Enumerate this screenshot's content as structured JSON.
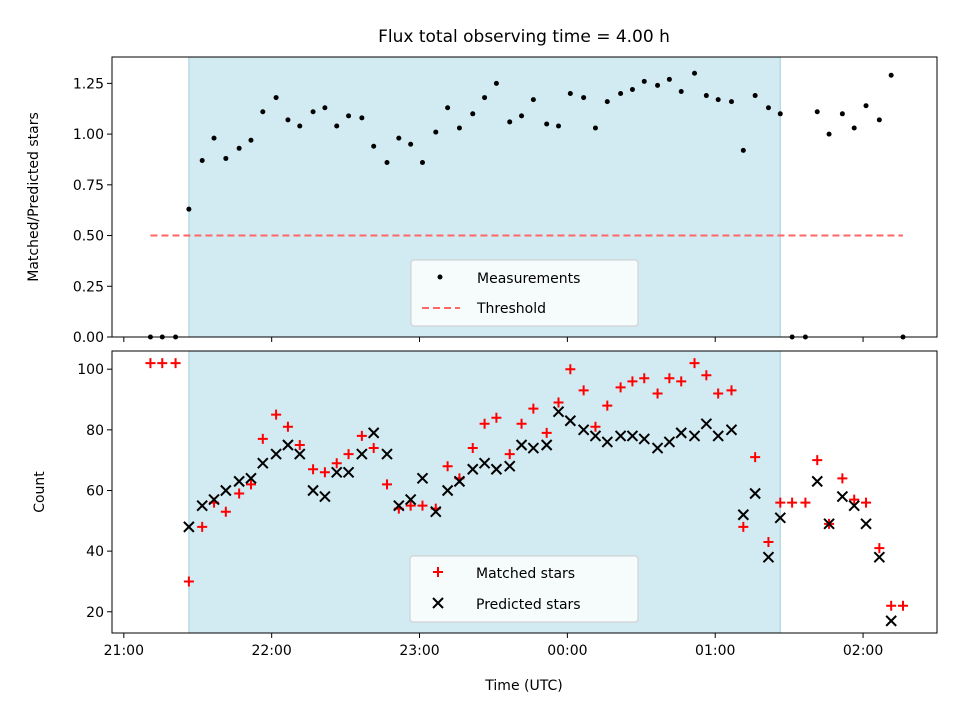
{
  "figure": {
    "title": "Flux total observing time = 4.00 h",
    "xlabel": "Time (UTC)",
    "xticks": [
      "21:00",
      "22:00",
      "23:00",
      "00:00",
      "01:00",
      "02:00"
    ],
    "shade_color": "#add8e6",
    "shade_range_hours": [
      21.44,
      25.44
    ]
  },
  "chart_data": [
    {
      "type": "scatter",
      "ylabel": "Matched/Predicted stars",
      "ylim": [
        0,
        1.38
      ],
      "yticks": [
        "0.00",
        "0.25",
        "0.50",
        "0.75",
        "1.00",
        "1.25"
      ],
      "ytick_values": [
        0,
        0.25,
        0.5,
        0.75,
        1.0,
        1.25
      ],
      "legend_position": "bottom-center",
      "threshold": {
        "name": "Threshold",
        "value": 0.5,
        "x_range": [
          21.18,
          26.27
        ],
        "color": "#ff6666"
      },
      "series": [
        {
          "name": "Measurements",
          "color": "#000000",
          "x": [
            21.18,
            21.26,
            21.35,
            21.44,
            21.53,
            21.61,
            21.69,
            21.78,
            21.86,
            21.94,
            22.03,
            22.11,
            22.19,
            22.28,
            22.36,
            22.44,
            22.52,
            22.61,
            22.69,
            22.78,
            22.86,
            22.94,
            23.02,
            23.11,
            23.19,
            23.27,
            23.36,
            23.44,
            23.52,
            23.61,
            23.69,
            23.77,
            23.86,
            23.94,
            24.02,
            24.11,
            24.19,
            24.27,
            24.36,
            24.44,
            24.52,
            24.61,
            24.69,
            24.77,
            24.86,
            24.94,
            25.02,
            25.11,
            25.19,
            25.27,
            25.36,
            25.44,
            25.52,
            25.61,
            25.69,
            25.77,
            25.86,
            25.94,
            26.02,
            26.11,
            26.19,
            26.27
          ],
          "y": [
            0,
            0,
            0,
            0.63,
            0.87,
            0.98,
            0.88,
            0.93,
            0.97,
            1.11,
            1.18,
            1.07,
            1.04,
            1.11,
            1.13,
            1.04,
            1.09,
            1.08,
            0.94,
            0.86,
            0.98,
            0.95,
            0.86,
            1.01,
            1.13,
            1.03,
            1.1,
            1.18,
            1.25,
            1.06,
            1.09,
            1.17,
            1.05,
            1.04,
            1.2,
            1.18,
            1.03,
            1.16,
            1.2,
            1.22,
            1.26,
            1.24,
            1.27,
            1.21,
            1.3,
            1.19,
            1.17,
            1.16,
            0.92,
            1.19,
            1.13,
            1.1,
            0,
            0,
            1.11,
            1.0,
            1.1,
            1.03,
            1.14,
            1.07,
            1.29,
            0
          ]
        }
      ]
    },
    {
      "type": "scatter",
      "ylabel": "Count",
      "ylim": [
        13,
        106
      ],
      "yticks": [
        "20",
        "40",
        "60",
        "80",
        "100"
      ],
      "ytick_values": [
        20,
        40,
        60,
        80,
        100
      ],
      "legend_position": "bottom-center",
      "series": [
        {
          "name": "Matched stars",
          "marker": "plus",
          "color": "#ff0000",
          "x": [
            21.18,
            21.26,
            21.35,
            21.44,
            21.53,
            21.61,
            21.69,
            21.78,
            21.86,
            21.94,
            22.03,
            22.11,
            22.19,
            22.28,
            22.36,
            22.44,
            22.52,
            22.61,
            22.69,
            22.78,
            22.86,
            22.94,
            23.02,
            23.11,
            23.19,
            23.27,
            23.36,
            23.44,
            23.52,
            23.61,
            23.69,
            23.77,
            23.86,
            23.94,
            24.02,
            24.11,
            24.19,
            24.27,
            24.36,
            24.44,
            24.52,
            24.61,
            24.69,
            24.77,
            24.86,
            24.94,
            25.02,
            25.11,
            25.19,
            25.27,
            25.36,
            25.44,
            25.52,
            25.61,
            25.69,
            25.77,
            25.86,
            25.94,
            26.02,
            26.11,
            26.19,
            26.27
          ],
          "y": [
            102,
            102,
            102,
            30,
            48,
            56,
            53,
            59,
            62,
            77,
            85,
            81,
            75,
            67,
            66,
            69,
            72,
            78,
            74,
            62,
            54,
            55,
            55,
            54,
            68,
            64,
            74,
            82,
            84,
            72,
            82,
            87,
            79,
            89,
            100,
            93,
            81,
            88,
            94,
            96,
            97,
            92,
            97,
            96,
            102,
            98,
            92,
            93,
            48,
            71,
            43,
            56,
            56,
            56,
            70,
            49,
            64,
            57,
            56,
            41,
            22,
            22
          ]
        },
        {
          "name": "Predicted stars",
          "marker": "x",
          "color": "#000000",
          "x": [
            21.44,
            21.53,
            21.61,
            21.69,
            21.78,
            21.86,
            21.94,
            22.03,
            22.11,
            22.19,
            22.28,
            22.36,
            22.44,
            22.52,
            22.61,
            22.69,
            22.78,
            22.86,
            22.94,
            23.02,
            23.11,
            23.19,
            23.27,
            23.36,
            23.44,
            23.52,
            23.61,
            23.69,
            23.77,
            23.86,
            23.94,
            24.02,
            24.11,
            24.19,
            24.27,
            24.36,
            24.44,
            24.52,
            24.61,
            24.69,
            24.77,
            24.86,
            24.94,
            25.02,
            25.11,
            25.19,
            25.27,
            25.36,
            25.44,
            25.69,
            25.77,
            25.86,
            25.94,
            26.02,
            26.11,
            26.19
          ],
          "y": [
            48,
            55,
            57,
            60,
            63,
            64,
            69,
            72,
            75,
            72,
            60,
            58,
            66,
            66,
            72,
            79,
            72,
            55,
            57,
            64,
            53,
            60,
            63,
            67,
            69,
            67,
            68,
            75,
            74,
            75,
            86,
            83,
            80,
            78,
            76,
            78,
            78,
            77,
            74,
            76,
            79,
            78,
            82,
            78,
            80,
            52,
            59,
            38,
            51,
            63,
            49,
            58,
            55,
            49,
            38,
            17
          ]
        }
      ]
    }
  ]
}
